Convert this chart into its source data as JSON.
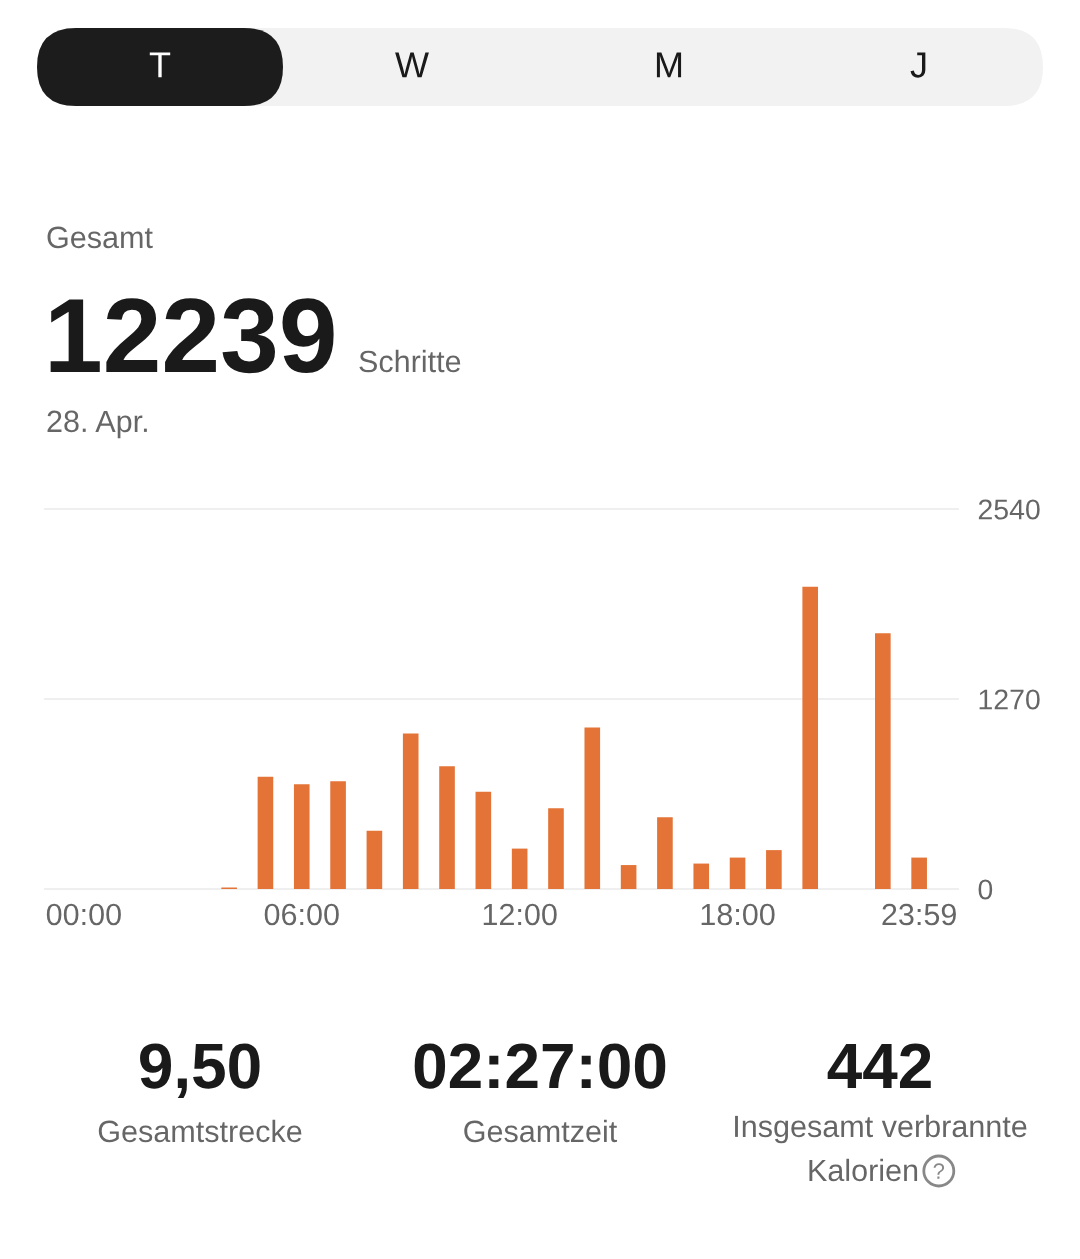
{
  "chart_data": {
    "type": "bar",
    "title": "Gesamt",
    "subtitle": "28. Apr.",
    "categories": [
      "00:00",
      null,
      null,
      null,
      null,
      null,
      "06:00",
      null,
      null,
      null,
      null,
      null,
      "12:00",
      null,
      null,
      null,
      null,
      null,
      "18:00",
      null,
      null,
      null,
      null,
      "23:59"
    ],
    "values": [
      0,
      0,
      0,
      0,
      10,
      750,
      700,
      720,
      390,
      1040,
      820,
      650,
      270,
      540,
      1080,
      160,
      480,
      170,
      210,
      260,
      2020,
      0,
      1710,
      210
    ],
    "color": "#e37336",
    "ylim": [
      0,
      2540
    ],
    "yticks": [
      0,
      1270,
      2540
    ],
    "grid": "y",
    "annotations": [
      "T",
      "W",
      "M",
      "J",
      "12239",
      "Schritte",
      "9,50",
      "Gesamtstrecke",
      "02:27:00",
      "Gesamtzeit",
      "442",
      "Insgesamt verbrannte\nKalorien"
    ]
  }
}
